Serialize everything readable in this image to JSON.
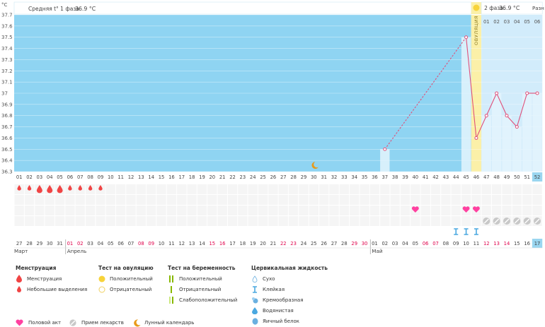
{
  "chart_data": {
    "type": "line",
    "title": "",
    "ylabel": "°C",
    "ylim": [
      36.3,
      37.7
    ],
    "y_ticks": [
      "37.7",
      "37.6",
      "37.5",
      "37.4",
      "37.3",
      "37.2",
      "37.1",
      "37",
      "36.9",
      "36.8",
      "36.7",
      "36.6",
      "36.5",
      "36.4",
      "36.3"
    ],
    "cycle_days": [
      "01",
      "02",
      "03",
      "04",
      "05",
      "06",
      "07",
      "08",
      "09",
      "10",
      "11",
      "12",
      "13",
      "14",
      "15",
      "16",
      "17",
      "18",
      "19",
      "20",
      "21",
      "22",
      "23",
      "24",
      "25",
      "26",
      "27",
      "28",
      "29",
      "30",
      "31",
      "32",
      "33",
      "34",
      "35",
      "36",
      "37",
      "38",
      "39",
      "40",
      "41",
      "42",
      "43",
      "44",
      "45",
      "46",
      "47",
      "48",
      "49",
      "50",
      "51",
      "52"
    ],
    "dates": [
      "27",
      "28",
      "29",
      "30",
      "31",
      "01",
      "02",
      "03",
      "04",
      "05",
      "06",
      "07",
      "08",
      "09",
      "10",
      "11",
      "12",
      "13",
      "14",
      "15",
      "16",
      "17",
      "18",
      "19",
      "20",
      "21",
      "22",
      "23",
      "24",
      "25",
      "26",
      "27",
      "28",
      "29",
      "30",
      "01",
      "02",
      "03",
      "04",
      "05",
      "06",
      "07",
      "08",
      "09",
      "10",
      "11",
      "12",
      "13",
      "14",
      "15",
      "16",
      "17"
    ],
    "date_red": [
      false,
      false,
      false,
      false,
      false,
      true,
      true,
      false,
      false,
      false,
      false,
      false,
      true,
      true,
      false,
      false,
      false,
      false,
      false,
      true,
      true,
      false,
      false,
      false,
      false,
      false,
      true,
      true,
      false,
      false,
      false,
      false,
      false,
      true,
      true,
      false,
      false,
      false,
      false,
      false,
      true,
      true,
      false,
      false,
      false,
      false,
      true,
      true,
      true,
      false,
      false,
      false
    ],
    "months": [
      {
        "label": "Март",
        "day_index": 0
      },
      {
        "label": "Апрель",
        "day_index": 5
      },
      {
        "label": "Май",
        "day_index": 35
      }
    ],
    "series": [
      {
        "points": [
          {
            "day": 37,
            "value": 36.5
          },
          {
            "day": 45,
            "value": 37.5
          },
          {
            "day": 46,
            "value": 36.6
          },
          {
            "day": 47,
            "value": 36.8
          },
          {
            "day": 48,
            "value": 37.0
          },
          {
            "day": 49,
            "value": 36.8
          },
          {
            "day": 50,
            "value": 36.7
          },
          {
            "day": 51,
            "value": 37.0
          },
          {
            "day": 52,
            "value": 37.0
          }
        ],
        "dashed_segments": [
          [
            37,
            45
          ]
        ]
      }
    ],
    "phase1_avg_label": "Средняя t° 1 фаза",
    "phase1_avg_value": "36.9 °C",
    "phase2_avg_label": "2 фаза",
    "phase2_avg_value": "36.9 °C",
    "ovulation_label": "ОВУЛЯЦИЯ",
    "ovulation_day": 46,
    "phase2_truncated_label": "Разн",
    "phase2_days": [
      "01",
      "02",
      "03",
      "04",
      "05",
      "06"
    ],
    "current_day": 52,
    "moon_day": 30,
    "menstruation_days": [
      1,
      2,
      3,
      4,
      5,
      6,
      7,
      8,
      9
    ],
    "menstruation_heavy_days": [
      3,
      4,
      5
    ],
    "intercourse_days": [
      40,
      45,
      46
    ],
    "medication_days": [
      47,
      48,
      49,
      50,
      51,
      52
    ],
    "cervical_fluid_days": [
      44,
      45,
      46
    ],
    "grid": true
  },
  "legend": {
    "menstruation": {
      "title": "Менструация",
      "items": [
        "Менструация",
        "Небольшие выделения"
      ]
    },
    "ovulation_test": {
      "title": "Тест на овуляцию",
      "items": [
        "Положительный",
        "Отрицательный"
      ]
    },
    "pregnancy_test": {
      "title": "Тест на беременность",
      "items": [
        "Положительный",
        "Отрицательный",
        "Слабоположительный"
      ]
    },
    "cervical_fluid": {
      "title": "Цервикальная жидкость",
      "items": [
        "Сухо",
        "Клейкая",
        "Кремообразная",
        "Водянистая",
        "Яичный белок"
      ]
    },
    "bottom": {
      "intercourse": "Половой акт",
      "medication": "Прием лекарств",
      "lunar": "Лунный календарь"
    }
  },
  "colors": {
    "phase1": "#8fd4f2",
    "phase2": "#d2ecfb",
    "ovulation": "#fbf0a8",
    "line": "#e0507a",
    "drop": "#f04444",
    "heart": "#ff40a0",
    "red_date": "#e0004a",
    "today": "#9ad6f0"
  }
}
